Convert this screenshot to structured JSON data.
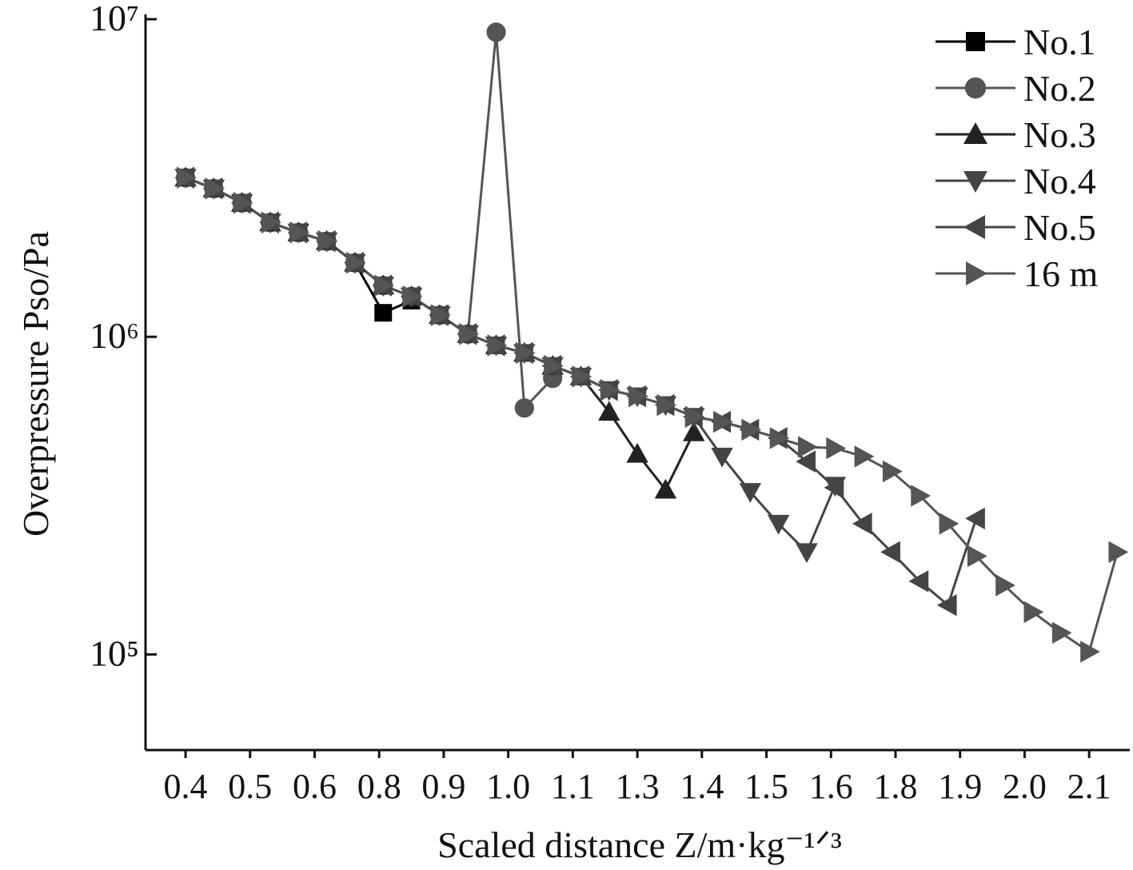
{
  "chart_data": {
    "type": "line",
    "xlabel": "Scaled distance Z/m·kg⁻¹ᐟ³",
    "ylabel": "Overpressure Pso/Pa",
    "ylog": true,
    "legend": "top-right",
    "xlim": [
      -0.62,
      14.63
    ],
    "ylim": [
      50000,
      10000000
    ],
    "xticks": [
      {
        "value": 0,
        "label": "0.4"
      },
      {
        "value": 1,
        "label": "0.5"
      },
      {
        "value": 2,
        "label": "0.6"
      },
      {
        "value": 3,
        "label": "0.8"
      },
      {
        "value": 4,
        "label": "0.9"
      },
      {
        "value": 5,
        "label": "1.0"
      },
      {
        "value": 6,
        "label": "1.1"
      },
      {
        "value": 7,
        "label": "1.3"
      },
      {
        "value": 8,
        "label": "1.4"
      },
      {
        "value": 9,
        "label": "1.5"
      },
      {
        "value": 10,
        "label": "1.6"
      },
      {
        "value": 11,
        "label": "1.8"
      },
      {
        "value": 12,
        "label": "1.9"
      },
      {
        "value": 13,
        "label": "2.0"
      },
      {
        "value": 14,
        "label": "2.1"
      }
    ],
    "yticks": [
      {
        "value": 100000,
        "label": "10⁵"
      },
      {
        "value": 1000000,
        "label": "10⁶"
      },
      {
        "value": 10000000,
        "label": "10⁷"
      }
    ],
    "series": [
      {
        "name": "No.1",
        "color": "#000000",
        "marker": "square",
        "x": [
          0,
          0.4375,
          0.875,
          1.3125,
          1.75,
          2.1875,
          2.625,
          3.0625,
          3.5
        ],
        "values": [
          3170000,
          2930000,
          2640000,
          2290000,
          2130000,
          2000000,
          1710000,
          1190000,
          1300000
        ]
      },
      {
        "name": "No.2",
        "color": "#555555",
        "marker": "circle",
        "x": [
          0,
          0.4375,
          0.875,
          1.3125,
          1.75,
          2.1875,
          2.625,
          3.0625,
          3.5,
          3.9375,
          4.375,
          4.8125,
          5.25,
          5.6875
        ],
        "values": [
          3170000,
          2930000,
          2640000,
          2290000,
          2130000,
          2000000,
          1710000,
          1450000,
          1340000,
          1170000,
          1020000,
          9100000,
          597000,
          740000
        ]
      },
      {
        "name": "No.3",
        "color": "#222222",
        "marker": "triangle-up",
        "x": [
          0,
          0.4375,
          0.875,
          1.3125,
          1.75,
          2.1875,
          2.625,
          3.0625,
          3.5,
          3.9375,
          4.375,
          4.8125,
          5.25,
          5.6875,
          6.125,
          6.5625,
          7,
          7.4375,
          7.875
        ],
        "values": [
          3170000,
          2930000,
          2640000,
          2290000,
          2130000,
          2000000,
          1710000,
          1450000,
          1340000,
          1170000,
          1020000,
          940000,
          890000,
          810000,
          750000,
          580000,
          428000,
          330000,
          500000
        ]
      },
      {
        "name": "No.4",
        "color": "#444444",
        "marker": "triangle-down",
        "x": [
          0,
          0.4375,
          0.875,
          1.3125,
          1.75,
          2.1875,
          2.625,
          3.0625,
          3.5,
          3.9375,
          4.375,
          4.8125,
          5.25,
          5.6875,
          6.125,
          6.5625,
          7,
          7.4375,
          7.875,
          8.3125,
          8.75,
          9.1875,
          9.625,
          10.0625
        ],
        "values": [
          3170000,
          2930000,
          2640000,
          2290000,
          2130000,
          2000000,
          1710000,
          1450000,
          1340000,
          1170000,
          1020000,
          940000,
          890000,
          810000,
          750000,
          680000,
          650000,
          610000,
          560000,
          420000,
          325000,
          258000,
          210000,
          340000
        ]
      },
      {
        "name": "No.5",
        "color": "#444444",
        "marker": "triangle-left",
        "x": [
          0,
          0.4375,
          0.875,
          1.3125,
          1.75,
          2.1875,
          2.625,
          3.0625,
          3.5,
          3.9375,
          4.375,
          4.8125,
          5.25,
          5.6875,
          6.125,
          6.5625,
          7,
          7.4375,
          7.875,
          8.3125,
          8.75,
          9.1875,
          9.625,
          10.0625,
          10.5,
          10.9375,
          11.375,
          11.8125,
          12.25
        ],
        "values": [
          3170000,
          2930000,
          2640000,
          2290000,
          2130000,
          2000000,
          1710000,
          1450000,
          1340000,
          1170000,
          1020000,
          940000,
          890000,
          810000,
          750000,
          680000,
          650000,
          610000,
          560000,
          540000,
          510000,
          480000,
          405000,
          335000,
          258000,
          210000,
          170000,
          143000,
          268000
        ]
      },
      {
        "name": "16 m",
        "color": "#555555",
        "marker": "triangle-right",
        "x": [
          0,
          0.4375,
          0.875,
          1.3125,
          1.75,
          2.1875,
          2.625,
          3.0625,
          3.5,
          3.9375,
          4.375,
          4.8125,
          5.25,
          5.6875,
          6.125,
          6.5625,
          7,
          7.4375,
          7.875,
          8.3125,
          8.75,
          9.1875,
          9.625,
          10.0625,
          10.5,
          10.9375,
          11.375,
          11.8125,
          12.25,
          12.6875,
          13.125,
          13.5625,
          14,
          14.4375
        ],
        "values": [
          3170000,
          2930000,
          2640000,
          2290000,
          2130000,
          2000000,
          1710000,
          1450000,
          1340000,
          1170000,
          1020000,
          940000,
          890000,
          810000,
          750000,
          680000,
          650000,
          610000,
          560000,
          540000,
          510000,
          480000,
          450000,
          446000,
          420000,
          377000,
          316000,
          258000,
          204000,
          165000,
          136000,
          117000,
          102000,
          210000
        ]
      }
    ]
  }
}
